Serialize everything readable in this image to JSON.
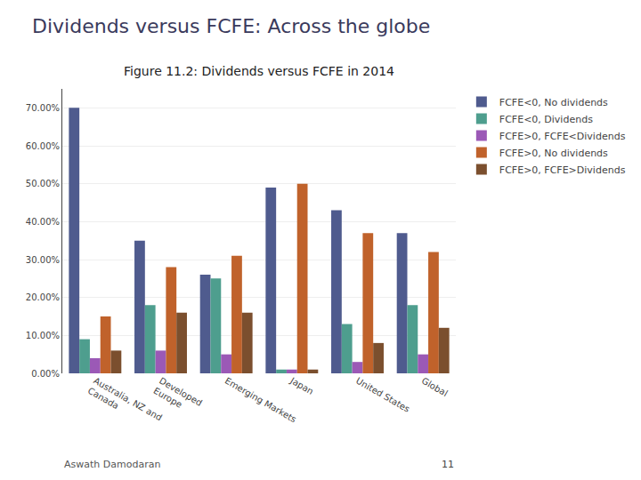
{
  "chart_data": {
    "type": "bar",
    "title": "Dividends versus FCFE: Across the globe",
    "subtitle": "Figure 11.2: Dividends versus FCFE in 2014",
    "annotations": [
      "Aswath Damodaran",
      "11"
    ],
    "categories": [
      "Australia, NZ and\nCanada",
      "Developed\nEurope",
      "Emerging Markets",
      "Japan",
      "United States",
      "Global"
    ],
    "series": [
      {
        "name": "FCFE<0, No dividends",
        "color": "#4F5B8E",
        "values": [
          0.7,
          0.35,
          0.26,
          0.49,
          0.43,
          0.37
        ]
      },
      {
        "name": "FCFE<0, Dividends",
        "color": "#4E9E8E",
        "values": [
          0.09,
          0.18,
          0.25,
          0.01,
          0.13,
          0.18
        ]
      },
      {
        "name": "FCFE>0, FCFE<Dividends",
        "color": "#9B59B6",
        "values": [
          0.04,
          0.06,
          0.05,
          0.01,
          0.03,
          0.05
        ]
      },
      {
        "name": "FCFE>0, No dividends",
        "color": "#C0622B",
        "values": [
          0.15,
          0.28,
          0.31,
          0.5,
          0.37,
          0.32
        ]
      },
      {
        "name": "FCFE>0, FCFE>Dividends",
        "color": "#7B4F2E",
        "values": [
          0.06,
          0.16,
          0.16,
          0.01,
          0.08,
          0.12
        ]
      }
    ],
    "ylim": [
      0,
      0.75
    ],
    "yticks": [
      {
        "value": 0.0,
        "label": "0.00%"
      },
      {
        "value": 0.1,
        "label": "10.00%"
      },
      {
        "value": 0.2,
        "label": "20.00%"
      },
      {
        "value": 0.3,
        "label": "30.00%"
      },
      {
        "value": 0.4,
        "label": "40.00%"
      },
      {
        "value": 0.5,
        "label": "50.00%"
      },
      {
        "value": 0.6,
        "label": "60.00%"
      },
      {
        "value": 0.7,
        "label": "70.00%"
      }
    ],
    "grid": true,
    "legend": "right"
  }
}
